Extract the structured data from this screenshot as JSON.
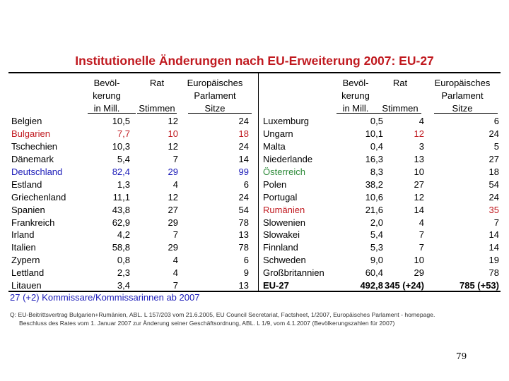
{
  "title": "Institutionelle Änderungen nach EU-Erweiterung 2007: EU-27",
  "headers": {
    "bev_line1": "Bevöl-",
    "bev_line2": "kerung",
    "bev_line3": "in Mill.",
    "rat_line1": "Rat",
    "rat_line2": "Stimmen",
    "ep_line1": "Europäisches",
    "ep_line2": "Parlament",
    "ep_line3": "Sitze"
  },
  "left_rows": [
    {
      "name": "Belgien",
      "bev": "10,5",
      "rat": "12",
      "sitze": "24",
      "color": "black"
    },
    {
      "name": "Bulgarien",
      "bev": "7,7",
      "rat": "10",
      "sitze": "18",
      "color": "red"
    },
    {
      "name": "Tschechien",
      "bev": "10,3",
      "rat": "12",
      "sitze": "24",
      "color": "black"
    },
    {
      "name": "Dänemark",
      "bev": "5,4",
      "rat": "7",
      "sitze": "14",
      "color": "black"
    },
    {
      "name": "Deutschland",
      "bev": "82,4",
      "rat": "29",
      "sitze": "99",
      "color": "blue"
    },
    {
      "name": "Estland",
      "bev": "1,3",
      "rat": "4",
      "sitze": "6",
      "color": "black"
    },
    {
      "name": "Griechenland",
      "bev": "11,1",
      "rat": "12",
      "sitze": "24",
      "color": "black"
    },
    {
      "name": "Spanien",
      "bev": "43,8",
      "rat": "27",
      "sitze": "54",
      "color": "black"
    },
    {
      "name": "Frankreich",
      "bev": "62,9",
      "rat": "29",
      "sitze": "78",
      "color": "black"
    },
    {
      "name": "Irland",
      "bev": "4,2",
      "rat": "7",
      "sitze": "13",
      "color": "black"
    },
    {
      "name": "Italien",
      "bev": "58,8",
      "rat": "29",
      "sitze": "78",
      "color": "black"
    },
    {
      "name": "Zypern",
      "bev": "0,8",
      "rat": "4",
      "sitze": "6",
      "color": "black"
    },
    {
      "name": "Lettland",
      "bev": "2,3",
      "rat": "4",
      "sitze": "9",
      "color": "black"
    },
    {
      "name": "Litauen",
      "bev": "3,4",
      "rat": "7",
      "sitze": "13",
      "color": "black"
    }
  ],
  "right_rows": [
    {
      "name": "Luxemburg",
      "bev": "0,5",
      "rat": "4",
      "sitze": "6",
      "color": "black"
    },
    {
      "name": "Ungarn",
      "bev": "10,1",
      "rat": "12",
      "sitze": "24",
      "color": "black",
      "rat_color": "red"
    },
    {
      "name": "Malta",
      "bev": "0,4",
      "rat": "3",
      "sitze": "5",
      "color": "black"
    },
    {
      "name": "Niederlande",
      "bev": "16,3",
      "rat": "13",
      "sitze": "27",
      "color": "black"
    },
    {
      "name": "Österreich",
      "bev": "8,3",
      "rat": "10",
      "sitze": "18",
      "color": "black",
      "name_color": "green"
    },
    {
      "name": "Polen",
      "bev": "38,2",
      "rat": "27",
      "sitze": "54",
      "color": "black"
    },
    {
      "name": "Portugal",
      "bev": "10,6",
      "rat": "12",
      "sitze": "24",
      "color": "black"
    },
    {
      "name": "Rumänien",
      "bev": "21,6",
      "rat": "14",
      "sitze": "35",
      "color": "black",
      "name_color": "red",
      "sitze_color": "red"
    },
    {
      "name": "Slowenien",
      "bev": "2,0",
      "rat": "4",
      "sitze": "7",
      "color": "black"
    },
    {
      "name": "Slowakei",
      "bev": "5,4",
      "rat": "7",
      "sitze": "14",
      "color": "black"
    },
    {
      "name": "Finnland",
      "bev": "5,3",
      "rat": "7",
      "sitze": "14",
      "color": "black"
    },
    {
      "name": "Schweden",
      "bev": "9,0",
      "rat": "10",
      "sitze": "19",
      "color": "black"
    },
    {
      "name": "Großbritannien",
      "bev": "60,4",
      "rat": "29",
      "sitze": "78",
      "color": "black"
    },
    {
      "name": "EU-27",
      "bev": "492,8",
      "rat": "345 (+24)",
      "sitze": "785 (+53)",
      "color": "black",
      "bold": true
    }
  ],
  "colors": {
    "black": "#000000",
    "red": "#c0191f",
    "blue": "#1a1ab8",
    "green": "#2e8b3a"
  },
  "kommissare": "27 (+2)  Kommissare/Kommissarinnen ab 2007",
  "source_line1": "Q: EU-Beitrittsvertrag Bulgarien+Rumänien, ABL. L 157/203 vom 21.6.2005, EU Council Secretariat, Factsheet, 1/2007, Europäisches Parlament - homepage.",
  "source_line2": "Beschluss des Rates vom 1. Januar 2007 zur Änderung seiner Geschäftsordnung, ABL. L 1/9, vom 4.1.2007 (Bevölkerungszahlen für 2007)",
  "page_number": "79"
}
